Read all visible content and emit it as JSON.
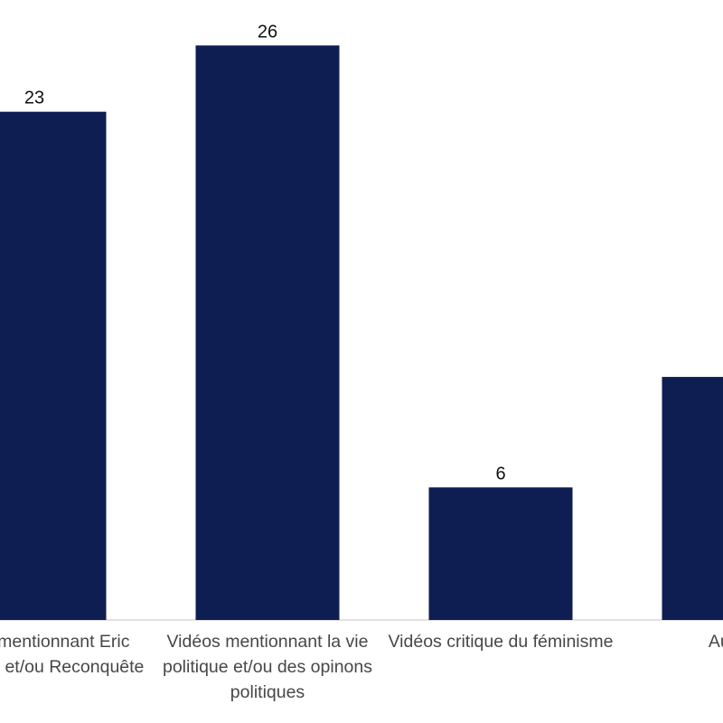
{
  "chart_data": {
    "type": "bar",
    "title": "",
    "xlabel": "",
    "ylabel": "",
    "categories": [
      "Vidéos mentionnant Eric Zemmour et/ou Reconquête",
      "Vidéos mentionnant la vie politique et/ou des opinons politiques",
      "Vidéos critique du féminisme",
      "Autres"
    ],
    "values": [
      23,
      26,
      6,
      11
    ],
    "ylim": [
      0,
      28
    ],
    "grid": false,
    "bar_color": "#0f1e52",
    "label_color": "#474747"
  }
}
